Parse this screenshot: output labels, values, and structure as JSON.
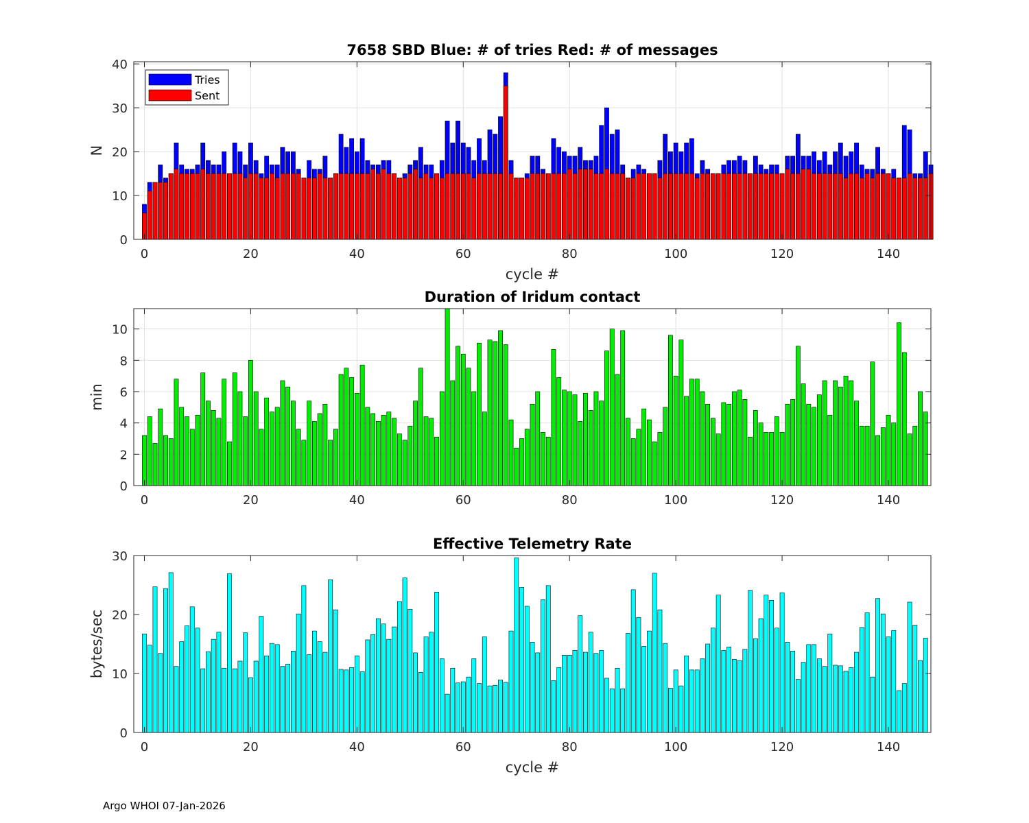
{
  "footer": "Argo WHOI 07-Jan-2026",
  "colors": {
    "tries": "#0000ff",
    "sent": "#ff0000",
    "duration": "#00ee00",
    "rate": "#00ffff",
    "grid": "#e0e0e0",
    "axis": "#262626"
  },
  "chart_data": [
    {
      "type": "bar",
      "title": "7658 SBD  Blue: # of tries   Red: # of messages",
      "xlabel": "cycle #",
      "ylabel": "N",
      "xlim": [
        -2,
        148
      ],
      "ylim": [
        0,
        40.5
      ],
      "xticks": [
        0,
        20,
        40,
        60,
        80,
        100,
        120,
        140
      ],
      "yticks": [
        0,
        10,
        20,
        30,
        40
      ],
      "grid": true,
      "legend": {
        "position": "top-left",
        "entries": [
          "Tries",
          "Sent"
        ]
      },
      "x_start": 0,
      "series": [
        {
          "name": "Tries",
          "values": [
            8,
            13,
            13,
            17,
            14,
            15,
            22,
            17,
            16,
            16,
            17,
            22,
            18,
            17,
            17,
            20,
            15,
            22,
            20,
            17,
            22,
            18,
            15,
            19,
            17,
            17,
            21,
            20,
            20,
            16,
            14,
            18,
            16,
            16,
            19,
            14,
            15,
            24,
            21,
            23,
            20,
            23,
            18,
            17,
            17,
            18,
            18,
            15,
            14,
            15,
            17,
            18,
            21,
            17,
            17,
            15,
            18,
            27,
            22,
            27,
            22,
            21,
            18,
            23,
            18,
            25,
            24,
            28,
            38,
            18,
            14,
            14,
            15,
            19,
            19,
            16,
            15,
            23,
            21,
            20,
            19,
            19,
            21,
            18,
            18,
            19,
            26,
            30,
            24,
            25,
            17,
            14,
            16,
            17,
            16,
            15,
            15,
            18,
            24,
            20,
            22,
            20,
            22,
            23,
            15,
            18,
            16,
            15,
            15,
            17,
            18,
            18,
            19,
            18,
            15,
            19,
            17,
            16,
            17,
            17,
            15,
            19,
            19,
            24,
            19,
            19,
            20,
            18,
            20,
            17,
            20,
            22,
            19,
            20,
            22,
            17,
            16,
            16,
            21,
            16,
            15,
            16,
            14,
            26,
            25,
            15,
            15,
            20,
            17
          ]
        },
        {
          "name": "Sent",
          "values": [
            6,
            11,
            13,
            13,
            13,
            15,
            16,
            15,
            15,
            15,
            15,
            16,
            15,
            15,
            15,
            15,
            15,
            15,
            15,
            14,
            15,
            15,
            14,
            14,
            15,
            14,
            15,
            15,
            15,
            15,
            14,
            14,
            14,
            15,
            14,
            14,
            15,
            15,
            15,
            15,
            15,
            15,
            15,
            16,
            15,
            16,
            15,
            15,
            14,
            14,
            15,
            16,
            14,
            15,
            14,
            15,
            14,
            15,
            15,
            15,
            15,
            15,
            14,
            15,
            15,
            15,
            15,
            15,
            35,
            15,
            14,
            14,
            14,
            15,
            15,
            15,
            15,
            15,
            15,
            15,
            16,
            15,
            16,
            16,
            16,
            15,
            15,
            16,
            15,
            15,
            15,
            14,
            14,
            15,
            15,
            15,
            15,
            14,
            15,
            15,
            15,
            15,
            15,
            15,
            14,
            15,
            15,
            15,
            15,
            15,
            15,
            15,
            15,
            15,
            15,
            15,
            15,
            15,
            15,
            15,
            15,
            16,
            15,
            15,
            16,
            16,
            15,
            15,
            15,
            15,
            15,
            15,
            14,
            15,
            15,
            14,
            15,
            14,
            15,
            15,
            15,
            14,
            14,
            14,
            15,
            14,
            14,
            14,
            15
          ]
        }
      ]
    },
    {
      "type": "bar",
      "title": "Duration of Iridum contact",
      "xlabel": "",
      "ylabel": "min",
      "xlim": [
        -2,
        148
      ],
      "ylim": [
        0,
        11.3
      ],
      "xticks": [
        0,
        20,
        40,
        60,
        80,
        100,
        120,
        140
      ],
      "yticks": [
        0,
        2,
        4,
        6,
        8,
        10
      ],
      "grid": true,
      "x_start": 0,
      "series": [
        {
          "name": "Duration",
          "values": [
            3.2,
            4.4,
            2.7,
            4.9,
            3.2,
            3.0,
            6.8,
            5.0,
            4.4,
            3.6,
            4.5,
            7.2,
            5.4,
            4.8,
            4.3,
            6.8,
            2.8,
            7.2,
            6.0,
            4.4,
            8.0,
            6.0,
            3.6,
            5.6,
            4.7,
            5.0,
            6.7,
            6.3,
            5.4,
            3.6,
            2.9,
            5.4,
            4.1,
            4.6,
            5.2,
            2.9,
            3.6,
            7.1,
            7.5,
            6.9,
            5.9,
            7.7,
            5.0,
            4.6,
            4.1,
            4.5,
            4.7,
            4.3,
            3.3,
            2.9,
            3.8,
            5.4,
            7.5,
            4.4,
            4.3,
            3.1,
            6.0,
            11.3,
            6.7,
            8.9,
            8.4,
            7.5,
            6.0,
            9.1,
            4.7,
            9.3,
            9.2,
            9.9,
            9.0,
            4.2,
            2.4,
            3.0,
            3.6,
            5.2,
            6.0,
            3.4,
            3.1,
            8.7,
            6.9,
            6.1,
            6.0,
            5.8,
            4.1,
            5.9,
            4.8,
            6.0,
            5.4,
            8.6,
            10.0,
            7.1,
            9.9,
            4.3,
            3.0,
            3.6,
            4.9,
            4.2,
            2.8,
            3.4,
            5.0,
            9.6,
            7.0,
            9.3,
            5.7,
            6.8,
            6.8,
            6.0,
            5.2,
            4.3,
            3.3,
            5.3,
            5.2,
            6.0,
            6.1,
            5.5,
            3.1,
            4.8,
            4.0,
            3.4,
            3.4,
            4.4,
            3.4,
            5.2,
            5.5,
            8.9,
            6.5,
            5.2,
            5.0,
            5.8,
            6.7,
            4.5,
            6.7,
            6.3,
            7.0,
            6.7,
            5.4,
            3.8,
            3.8,
            7.9,
            3.2,
            3.7,
            4.5,
            4.0,
            10.4,
            8.5,
            3.3,
            3.8,
            6.0,
            4.7
          ]
        }
      ]
    },
    {
      "type": "bar",
      "title": "Effective Telemetry Rate",
      "xlabel": "cycle #",
      "ylabel": "bytes/sec",
      "xlim": [
        -2,
        148
      ],
      "ylim": [
        0,
        30
      ],
      "xticks": [
        0,
        20,
        40,
        60,
        80,
        100,
        120,
        140
      ],
      "yticks": [
        10,
        20,
        30
      ],
      "zero_label": "0",
      "grid": false,
      "x_start": 0,
      "series": [
        {
          "name": "Rate",
          "values": [
            16.7,
            14.8,
            24.7,
            13.4,
            24.4,
            27.1,
            11.2,
            15.4,
            18.1,
            21.3,
            17.7,
            10.8,
            13.7,
            15.8,
            17.0,
            10.9,
            26.9,
            10.8,
            12.1,
            16.9,
            9.3,
            12.1,
            19.7,
            13.0,
            15.1,
            14.9,
            11.2,
            11.6,
            13.8,
            20.1,
            24.9,
            13.2,
            17.2,
            15.4,
            13.6,
            25.9,
            20.8,
            10.7,
            10.6,
            11.0,
            13.0,
            10.3,
            15.7,
            16.6,
            19.3,
            18.4,
            15.8,
            17.9,
            22.2,
            26.2,
            20.9,
            13.5,
            10.2,
            16.2,
            17.0,
            23.8,
            12.5,
            6.5,
            10.9,
            8.4,
            8.6,
            9.4,
            12.5,
            8.3,
            16.2,
            7.9,
            8.0,
            8.9,
            8.5,
            17.2,
            29.6,
            24.6,
            21.4,
            15.3,
            13.5,
            22.5,
            24.9,
            8.8,
            11.0,
            13.1,
            13.1,
            13.9,
            19.8,
            13.6,
            17.0,
            13.4,
            13.9,
            9.2,
            7.4,
            10.9,
            7.4,
            16.8,
            24.2,
            19.5,
            14.6,
            17.2,
            27.0,
            20.8,
            15.1,
            7.5,
            10.6,
            7.9,
            13.0,
            10.6,
            10.6,
            12.5,
            15.0,
            17.7,
            23.3,
            13.9,
            14.5,
            12.4,
            12.2,
            14.1,
            24.1,
            15.9,
            19.3,
            23.3,
            22.4,
            17.7,
            23.7,
            15.3,
            13.8,
            9.0,
            11.9,
            14.9,
            14.9,
            12.5,
            11.2,
            16.7,
            11.4,
            11.3,
            10.4,
            11.0,
            13.6,
            17.8,
            20.3,
            9.4,
            22.7,
            20.1,
            16.2,
            17.3,
            7.1,
            8.3,
            22.1,
            18.2,
            12.2,
            16.0
          ]
        }
      ]
    }
  ]
}
